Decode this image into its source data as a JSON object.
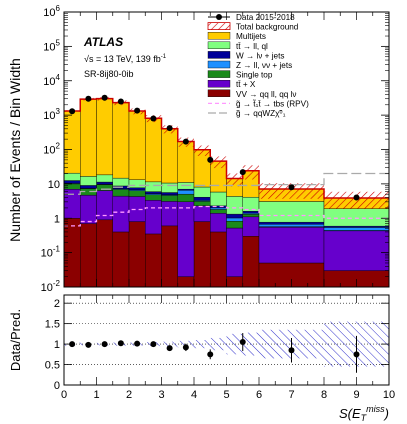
{
  "chart_data": [
    {
      "type": "bar",
      "stacked": true,
      "scale": "log",
      "ylabel": "Number of Events / Bin Width",
      "ylim": [
        0.01,
        1000000
      ],
      "xlim": [
        0,
        10
      ],
      "y_tick_labels": [
        "10^{-2}",
        "10^{-1}",
        "1",
        "10",
        "10^{2}",
        "10^{3}",
        "10^{4}",
        "10^{5}",
        "10^{6}"
      ],
      "annotations": {
        "experiment": "ATLAS",
        "energy_lumi": "√s = 13 TeV, 139 fb",
        "lumi_exp": "-1",
        "region": "SR-8ij80-0ib"
      },
      "x_edges": [
        0,
        0.5,
        1,
        1.5,
        2,
        2.5,
        3,
        3.5,
        4,
        4.5,
        5,
        5.5,
        6,
        8,
        10
      ],
      "series": [
        {
          "name": "VV → qq ll, qq lν",
          "color": "#8b0000",
          "values": [
            1.0,
            0.7,
            0.9,
            0.4,
            0.8,
            0.35,
            0.6,
            0.02,
            0.8,
            0.4,
            0.02,
            0.3,
            0.05,
            0.03
          ]
        },
        {
          "name": "tt̄ + X",
          "color": "#6600cc",
          "values": [
            6.0,
            4.0,
            5.5,
            4.0,
            3.5,
            3.0,
            2.5,
            3.0,
            1.5,
            1.0,
            0.5,
            0.8,
            0.5,
            0.4
          ]
        },
        {
          "name": "Single top",
          "color": "#1a8a1a",
          "values": [
            3.0,
            2.5,
            3.0,
            2.5,
            2.0,
            1.5,
            1.5,
            2.0,
            0.8,
            0.4,
            0.3,
            0.2,
            0.02,
            0.01
          ]
        },
        {
          "name": "Z → ll, νν + jets",
          "color": "#1e90ff",
          "values": [
            0.5,
            0.3,
            0.4,
            0.3,
            0.4,
            0.3,
            0.2,
            1.5,
            0.2,
            0.2,
            0.2,
            0.1,
            0.1,
            0.1
          ]
        },
        {
          "name": "W → lν + jets",
          "color": "#000099",
          "values": [
            2.0,
            1.5,
            1.5,
            1.5,
            1.0,
            0.8,
            0.8,
            0.5,
            0.8,
            0.3,
            0.3,
            0.2,
            0.1,
            0.05
          ]
        },
        {
          "name": "tt̄ → ll, ql",
          "color": "#80ff80",
          "values": [
            8.0,
            7.5,
            7.0,
            6.0,
            5.5,
            5.5,
            5.0,
            4.0,
            4.0,
            3.5,
            3.0,
            2.5,
            2.3,
            1.3
          ]
        },
        {
          "name": "Multijets",
          "color": "#ffcc00",
          "values": [
            1300,
            2900,
            3000,
            2300,
            1300,
            800,
            390,
            160,
            90,
            40,
            10,
            20,
            4,
            2
          ]
        }
      ],
      "total_background": {
        "name": "Total background",
        "color": "#cc0000"
      },
      "signals": [
        {
          "name": "g̃ → t̃₁t̄ → tbs (RPV)",
          "color": "#ff99ff",
          "dash": "dashed",
          "values": [
            0.6,
            0.8,
            1.2,
            1.5,
            1.8,
            2.0,
            2.0,
            2.0,
            2.2,
            2.2,
            2.0,
            1.8,
            1.2,
            1.0
          ]
        },
        {
          "name": "g̃ → qqWZχ̃⁰₁",
          "color": "#aaaaaa",
          "dash": "longdash",
          "values": [
            5.0,
            6.0,
            7.0,
            8.0,
            9.0,
            9.0,
            9.0,
            9.0,
            9.0,
            9.0,
            9.0,
            9.0,
            9.5,
            20.0
          ]
        }
      ],
      "data": {
        "name": "Data 2015-2018",
        "x": [
          0.25,
          0.75,
          1.25,
          1.75,
          2.25,
          2.75,
          3.25,
          3.75,
          4.5,
          5.5,
          7.0,
          9.0
        ],
        "y": [
          1300,
          3000,
          3200,
          2500,
          1350,
          800,
          420,
          170,
          50,
          22,
          8,
          4
        ]
      },
      "legend_position": "top-right"
    },
    {
      "type": "scatter",
      "ylabel": "Data/Pred.",
      "xlabel": "S(E_T^miss)",
      "xlim": [
        0,
        10
      ],
      "ylim": [
        0,
        2.2
      ],
      "x_ticks": [
        0,
        1,
        2,
        3,
        4,
        5,
        6,
        7,
        8,
        9,
        10
      ],
      "y_ticks": [
        0,
        0.5,
        1,
        1.5,
        2
      ],
      "grid": "horizontal dotted at 0.5, 1, 1.5, 2",
      "points": {
        "x": [
          0.25,
          0.75,
          1.25,
          1.75,
          2.25,
          2.75,
          3.25,
          3.75,
          4.5,
          5.5,
          7.0,
          9.0
        ],
        "y": [
          1.0,
          0.98,
          1.0,
          1.02,
          1.01,
          1.0,
          0.9,
          0.92,
          0.75,
          1.05,
          0.85,
          0.75
        ],
        "err": [
          0.03,
          0.02,
          0.02,
          0.03,
          0.03,
          0.04,
          0.06,
          0.09,
          0.12,
          0.22,
          0.3,
          0.45
        ]
      },
      "uncertainty_band": [
        0.04,
        0.03,
        0.03,
        0.04,
        0.04,
        0.05,
        0.06,
        0.08,
        0.1,
        0.15,
        0.25,
        0.28,
        0.35,
        0.55
      ]
    }
  ]
}
